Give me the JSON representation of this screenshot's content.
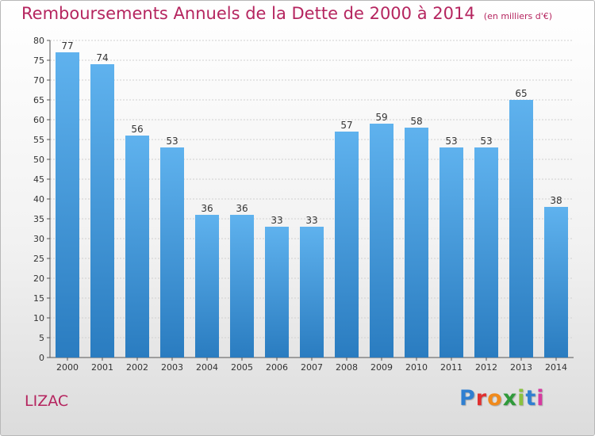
{
  "header": {
    "title": "Remboursements Annuels de la Dette de 2000 à 2014",
    "subtitle": "(en milliers d'€)"
  },
  "footer": {
    "commune": "LIZAC",
    "logo_text": "Proxiti",
    "logo_colors": [
      "#2f7fd1",
      "#e03030",
      "#f08a1c",
      "#2f9a3a",
      "#8ac23f",
      "#2f7fd1",
      "#d63aa0"
    ]
  },
  "colors": {
    "title": "#b5255f",
    "bar_top": "#5fb2ee",
    "bar_bottom": "#2a7cc0",
    "grid": "#d0d0d0"
  },
  "chart_data": {
    "type": "bar",
    "categories": [
      "2000",
      "2001",
      "2002",
      "2003",
      "2004",
      "2005",
      "2006",
      "2007",
      "2008",
      "2009",
      "2010",
      "2011",
      "2012",
      "2013",
      "2014"
    ],
    "values": [
      77,
      74,
      56,
      53,
      36,
      36,
      33,
      33,
      57,
      59,
      58,
      53,
      53,
      65,
      38
    ],
    "ylim": [
      0,
      80
    ],
    "ytick_step": 5,
    "grid": true,
    "data_labels": true
  }
}
